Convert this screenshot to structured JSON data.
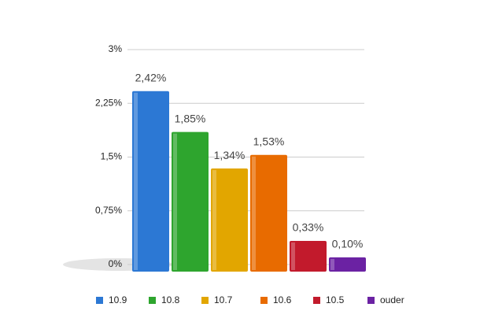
{
  "chart_data": {
    "type": "bar",
    "categories": [
      "10.9",
      "10.8",
      "10.7",
      "10.6",
      "10.5",
      "ouder"
    ],
    "values": [
      2.42,
      1.85,
      1.34,
      1.53,
      0.33,
      0.1
    ],
    "value_labels": [
      "2,42%",
      "1,85%",
      "1,34%",
      "1,53%",
      "0,33%",
      "0,10%"
    ],
    "colors": [
      "#2c78d4",
      "#2ea52e",
      "#e2a600",
      "#e86b00",
      "#c21a2c",
      "#6b22a3"
    ],
    "ylim": [
      0,
      3
    ],
    "yticks": [
      {
        "value": 0,
        "label": "0%"
      },
      {
        "value": 0.75,
        "label": "0,75%"
      },
      {
        "value": 1.5,
        "label": "1,5%"
      },
      {
        "value": 2.25,
        "label": "2,25%"
      },
      {
        "value": 3,
        "label": "3%"
      }
    ],
    "grid": true
  }
}
